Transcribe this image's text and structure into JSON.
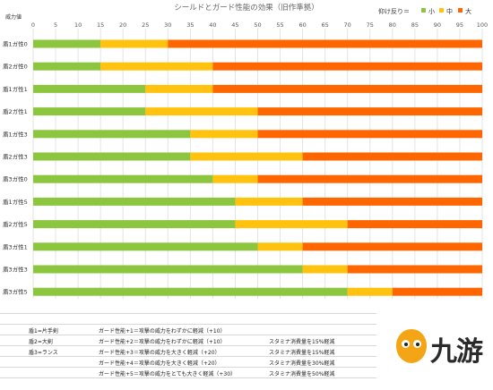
{
  "chart_data": {
    "type": "stacked-bar-horizontal",
    "title": "シールドとガード性能の効果（旧作準拠）",
    "xlabel": "威力値",
    "xlim": [
      0,
      100
    ],
    "x_ticks": [
      0,
      5,
      10,
      15,
      20,
      25,
      30,
      35,
      40,
      45,
      50,
      55,
      60,
      65,
      70,
      75,
      80,
      85,
      90,
      95,
      100
    ],
    "grid": true,
    "legend_position": "top-right",
    "legend_title": "仰け反り＝",
    "legend": [
      {
        "name": "小",
        "color": "#8cc63f"
      },
      {
        "name": "中",
        "color": "#ffc20e"
      },
      {
        "name": "大",
        "color": "#ff6600"
      }
    ],
    "categories": [
      "盾1ガ性0",
      "盾2ガ性0",
      "盾1ガ性1",
      "盾2ガ性1",
      "盾1ガ性3",
      "盾2ガ性3",
      "盾3ガ性0",
      "盾1ガ性5",
      "盾2ガ性5",
      "盾3ガ性1",
      "盾3ガ性3",
      "盾3ガ性5"
    ],
    "boundaries": [
      [
        15,
        30
      ],
      [
        15,
        40
      ],
      [
        25,
        40
      ],
      [
        25,
        50
      ],
      [
        35,
        50
      ],
      [
        35,
        60
      ],
      [
        40,
        50
      ],
      [
        45,
        60
      ],
      [
        45,
        70
      ],
      [
        50,
        60
      ],
      [
        60,
        70
      ],
      [
        70,
        80
      ]
    ]
  },
  "notes": {
    "shields": [
      "盾1=片手剣",
      "盾2=大剣",
      "盾3=ランス"
    ],
    "guards": [
      "ガード性能+1＝攻撃の威力をわずかに軽減（+10）",
      "ガード性能+2＝攻撃の威力をわずかに軽減（+10）",
      "ガード性能+3＝攻撃の威力を大きく軽減（+20）",
      "ガード性能+4＝攻撃の威力を大きく軽減（+20）",
      "ガード性能+5＝攻撃の威力をとても大きく軽減（+30）"
    ],
    "stamina": [
      "",
      "スタミナ消費量を15%軽減",
      "スタミナ消費量を15%軽減",
      "スタミナ消費量を30%軽減",
      "スタミナ消費量を50%軽減"
    ]
  },
  "watermark": {
    "text": "九游"
  }
}
